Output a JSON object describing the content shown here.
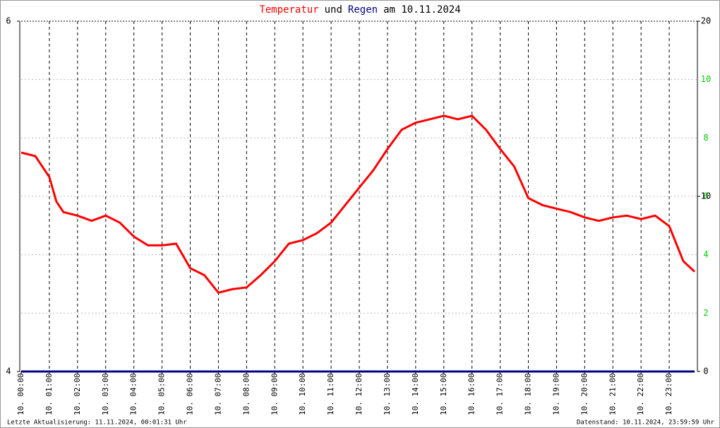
{
  "chart_data": {
    "type": "line",
    "title": [
      {
        "text": "Temperatur",
        "color": "#ff0000"
      },
      {
        "text": "und",
        "color": "#000000"
      },
      {
        "text": "Regen",
        "color": "#000080"
      },
      {
        "text": "am 10.11.2024",
        "color": "#000000"
      }
    ],
    "x": [
      0,
      0.5,
      1,
      1.25,
      1.5,
      2,
      2.5,
      3,
      3.5,
      4,
      4.5,
      5,
      5.5,
      6,
      6.5,
      7,
      7.5,
      8,
      8.5,
      9,
      9.5,
      10,
      10.5,
      11,
      11.5,
      12,
      12.5,
      13,
      13.5,
      14,
      14.5,
      15,
      15.5,
      16,
      16.5,
      17,
      17.5,
      18,
      18.5,
      19,
      19.5,
      20,
      20.5,
      21,
      21.5,
      22,
      22.5,
      23,
      23.5,
      23.9
    ],
    "series": [
      {
        "name": "Temperatur",
        "color": "#ff0000",
        "axis": "y",
        "values": [
          5.25,
          5.23,
          5.11,
          4.97,
          4.91,
          4.89,
          4.86,
          4.89,
          4.85,
          4.77,
          4.72,
          4.72,
          4.73,
          4.59,
          4.55,
          4.45,
          4.47,
          4.48,
          4.55,
          4.63,
          4.73,
          4.75,
          4.79,
          4.85,
          4.95,
          5.05,
          5.15,
          5.27,
          5.38,
          5.42,
          5.44,
          5.46,
          5.44,
          5.46,
          5.38,
          5.27,
          5.17,
          4.99,
          4.95,
          4.93,
          4.91,
          4.88,
          4.86,
          4.88,
          4.89,
          4.87,
          4.89,
          4.83,
          4.63,
          4.57
        ]
      },
      {
        "name": "Regen",
        "color": "#000080",
        "axis": "y2",
        "values": [
          0,
          0,
          0,
          0,
          0,
          0,
          0,
          0,
          0,
          0,
          0,
          0,
          0,
          0,
          0,
          0,
          0,
          0,
          0,
          0,
          0,
          0,
          0,
          0,
          0,
          0,
          0,
          0,
          0,
          0,
          0,
          0,
          0,
          0,
          0,
          0,
          0,
          0,
          0,
          0,
          0,
          0,
          0,
          0,
          0,
          0,
          0,
          0,
          0,
          0
        ]
      }
    ],
    "xlim": [
      0,
      24
    ],
    "xticks": [
      {
        "value": 0,
        "label": "10. 00:00"
      },
      {
        "value": 1,
        "label": "10. 01:00"
      },
      {
        "value": 2,
        "label": "10. 02:00"
      },
      {
        "value": 3,
        "label": "10. 03:00"
      },
      {
        "value": 4,
        "label": "10. 04:00"
      },
      {
        "value": 5,
        "label": "10. 05:00"
      },
      {
        "value": 6,
        "label": "10. 06:00"
      },
      {
        "value": 7,
        "label": "10. 07:00"
      },
      {
        "value": 8,
        "label": "10. 08:00"
      },
      {
        "value": 9,
        "label": "10. 09:00"
      },
      {
        "value": 10,
        "label": "10. 10:00"
      },
      {
        "value": 11,
        "label": "10. 11:00"
      },
      {
        "value": 12,
        "label": "10. 12:00"
      },
      {
        "value": 13,
        "label": "10. 13:00"
      },
      {
        "value": 14,
        "label": "10. 14:00"
      },
      {
        "value": 15,
        "label": "10. 15:00"
      },
      {
        "value": 16,
        "label": "10. 16:00"
      },
      {
        "value": 17,
        "label": "10. 17:00"
      },
      {
        "value": 18,
        "label": "10. 18:00"
      },
      {
        "value": 19,
        "label": "10. 19:00"
      },
      {
        "value": 20,
        "label": "10. 20:00"
      },
      {
        "value": 21,
        "label": "10. 21:00"
      },
      {
        "value": 22,
        "label": "10. 22:00"
      },
      {
        "value": 23,
        "label": "10. 23:00"
      }
    ],
    "ylim": [
      4,
      6
    ],
    "yticks": [
      4,
      6
    ],
    "y2lim": [
      0,
      20
    ],
    "y2ticks": [
      0,
      10,
      20
    ],
    "y3lim": [
      0,
      12
    ],
    "y3ticks": [
      2,
      4,
      6,
      8,
      10
    ],
    "y3color": "#00cc00",
    "footer_left": "Letzte Aktualisierung: 11.11.2024, 00:01:31 Uhr",
    "footer_right": "Datenstand: 10.11.2024, 23:59:59 Uhr"
  }
}
